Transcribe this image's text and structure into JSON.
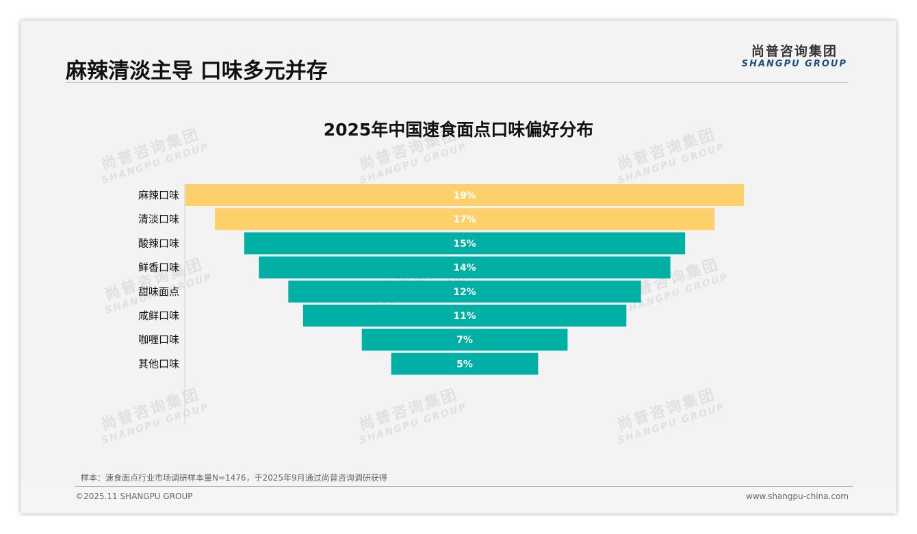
{
  "header": {
    "title": "麻辣清淡主导 口味多元并存",
    "logo_cn": "尚普咨询集团",
    "logo_en": "SHANGPU GROUP"
  },
  "watermark": {
    "cn": "尚普咨询集团",
    "en": "SHANGPU GROUP"
  },
  "colors": {
    "highlight": "#fdd06b",
    "primary": "#00b0a4",
    "label_text": "#ffffff",
    "category_text": "#111111"
  },
  "chart_data": {
    "type": "bar",
    "orientation": "horizontal-centered-funnel",
    "title": "2025年中国速食面点口味偏好分布",
    "categories": [
      "麻辣口味",
      "清淡口味",
      "酸辣口味",
      "鲜香口味",
      "甜味面点",
      "咸鲜口味",
      "咖喱口味",
      "其他口味"
    ],
    "values": [
      19,
      17,
      15,
      14,
      12,
      11,
      7,
      5
    ],
    "data_labels": [
      "19%",
      "17%",
      "15%",
      "14%",
      "12%",
      "11%",
      "7%",
      "5%"
    ],
    "highlight_count": 2,
    "unit": "%",
    "xlabel": "",
    "ylabel": ""
  },
  "footer": {
    "note": "样本：速食面点行业市场调研样本量N=1476，于2025年9月通过尚普咨询调研获得",
    "copyright": "©2025.11 SHANGPU GROUP",
    "website": "www.shangpu-china.com"
  }
}
